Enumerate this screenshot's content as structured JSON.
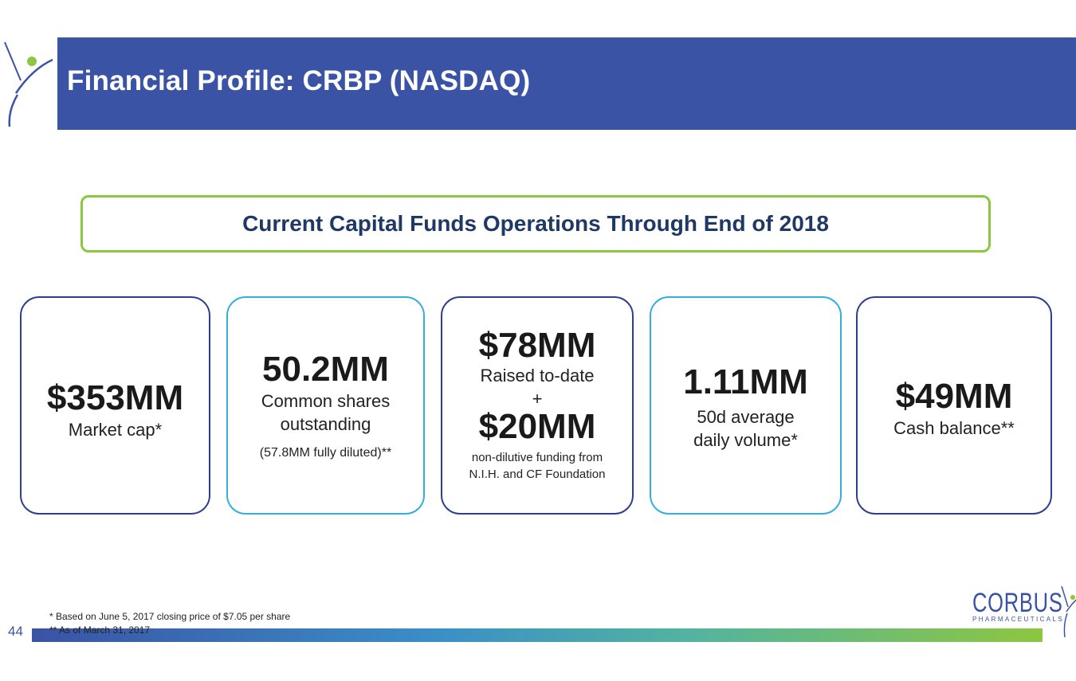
{
  "header": {
    "title": "Financial Profile: CRBP (NASDAQ)"
  },
  "banner": {
    "text": "Current Capital Funds Operations Through End of 2018"
  },
  "cards": [
    {
      "value": "$353MM",
      "label": "Market cap*"
    },
    {
      "value": "50.2MM",
      "label_line1": "Common shares",
      "label_line2": "outstanding",
      "note": "(57.8MM fully diluted)**"
    },
    {
      "value": "$78MM",
      "label": "Raised to-date",
      "plus": "+",
      "value2": "$20MM",
      "note_line1": "non-dilutive funding from",
      "note_line2": "N.I.H. and CF Foundation"
    },
    {
      "value": "1.11MM",
      "label_line1": "50d average",
      "label_line2": "daily volume*"
    },
    {
      "value": "$49MM",
      "label": "Cash balance**"
    }
  ],
  "footnotes": [
    "* Based on June 5, 2017 closing price of $7.05 per share",
    "** As of March 31, 2017"
  ],
  "page_number": "44",
  "logo": {
    "word": "CORBUS",
    "sub": "PHARMACEUTICALS"
  },
  "colors": {
    "header": "#3a53a4",
    "banner_border": "#8dc63f",
    "banner_text": "#1f3864",
    "card_dark": "#2e3f8f",
    "card_light": "#35aedf"
  }
}
